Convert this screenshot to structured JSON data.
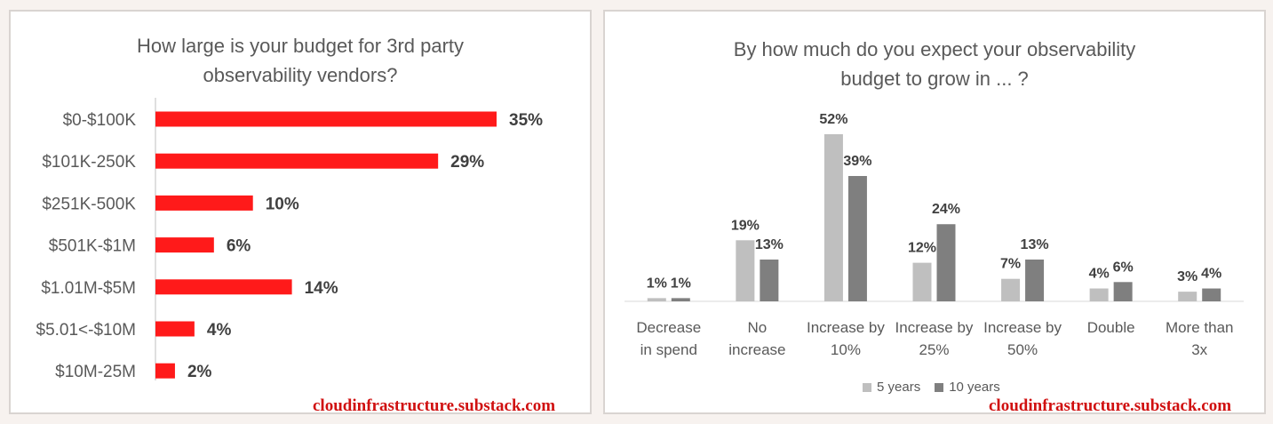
{
  "left_chart": {
    "title_line1": "How large is your budget for 3rd party",
    "title_line2": "observability vendors?",
    "watermark": "cloudinfrastructure.substack.com",
    "bar_color": "#ff1a1a"
  },
  "right_chart": {
    "title_line1": "By how much do you expect your observability",
    "title_line2": "budget to grow in ... ?",
    "watermark": "cloudinfrastructure.substack.com",
    "legend": [
      {
        "name": "5 years",
        "color": "#bfbfbf"
      },
      {
        "name": "10 years",
        "color": "#7f7f7f"
      }
    ]
  },
  "chart_data": [
    {
      "type": "bar",
      "orientation": "horizontal",
      "title": "How large is your budget for 3rd party observability vendors?",
      "categories": [
        "$0-$100K",
        "$101K-250K",
        "$251K-500K",
        "$501K-$1M",
        "$1.01M-$5M",
        "$5.01<-$10M",
        "$10M-25M"
      ],
      "values": [
        35,
        29,
        10,
        6,
        14,
        4,
        2
      ],
      "labels": [
        "35%",
        "29%",
        "10%",
        "6%",
        "14%",
        "4%",
        "2%"
      ],
      "unit": "%",
      "xlim": [
        0,
        35
      ]
    },
    {
      "type": "bar",
      "orientation": "vertical",
      "title": "By how much do you expect your observability budget to grow in ... ?",
      "categories": [
        [
          "Decrease",
          "in spend"
        ],
        [
          "No",
          "increase"
        ],
        [
          "Increase by",
          "10%"
        ],
        [
          "Increase by",
          "25%"
        ],
        [
          "Increase by",
          "50%"
        ],
        [
          "Double"
        ],
        [
          "More than",
          "3x"
        ]
      ],
      "series": [
        {
          "name": "5 years",
          "values": [
            1,
            19,
            52,
            12,
            7,
            4,
            3
          ],
          "labels": [
            "1%",
            "19%",
            "52%",
            "12%",
            "7%",
            "4%",
            "3%"
          ]
        },
        {
          "name": "10 years",
          "values": [
            1,
            13,
            39,
            24,
            13,
            6,
            4
          ],
          "labels": [
            "1%",
            "13%",
            "39%",
            "24%",
            "13%",
            "6%",
            "4%"
          ]
        }
      ],
      "unit": "%",
      "ylim": [
        0,
        52
      ]
    }
  ]
}
